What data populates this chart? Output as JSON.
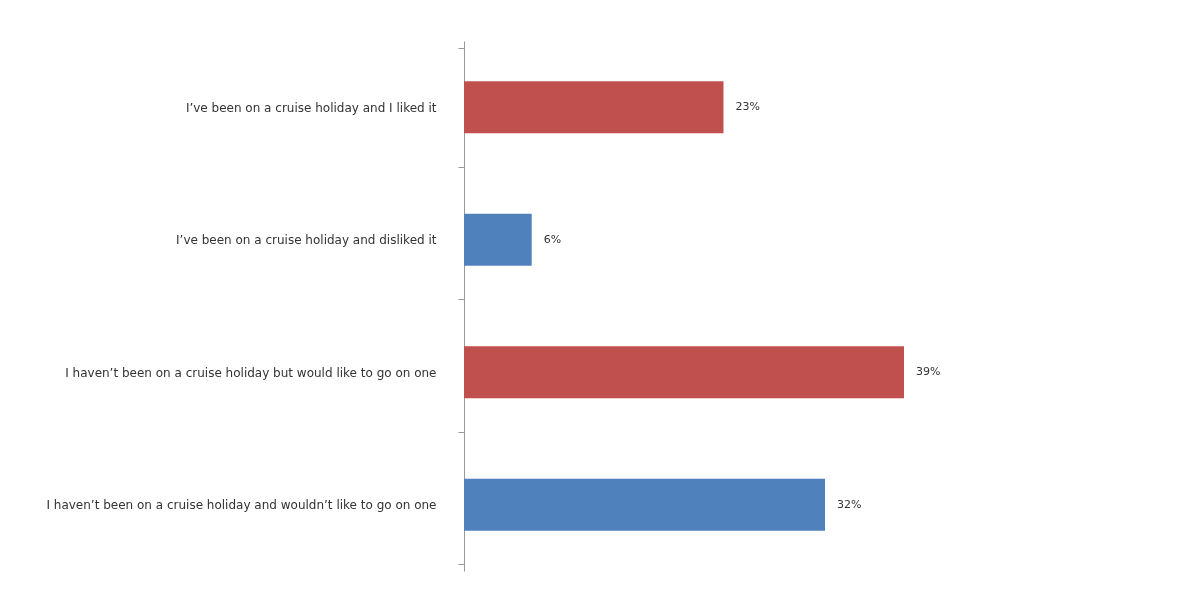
{
  "chart_data": {
    "type": "bar",
    "orientation": "horizontal",
    "categories": [
      "I’ve been on a cruise holiday and I liked it",
      "I’ve been on a cruise holiday and disliked it",
      "I haven’t been on a cruise holiday but would like to go on one",
      "I haven’t been on a cruise holiday and wouldn’t like to go on one"
    ],
    "values": [
      23,
      6,
      39,
      32
    ],
    "colors": [
      "#c0504d",
      "#4f81bd",
      "#c0504d",
      "#4f81bd"
    ],
    "value_labels": [
      "23%",
      "6%",
      "39%",
      "32%"
    ]
  }
}
